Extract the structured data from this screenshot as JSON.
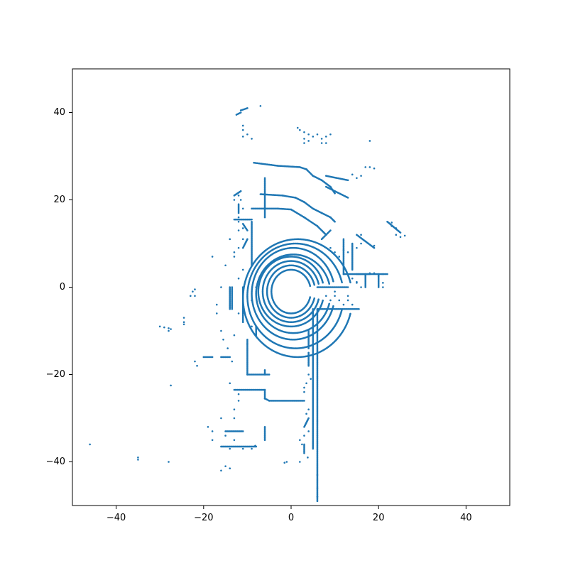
{
  "chart_data": {
    "type": "scatter",
    "title": "",
    "xlabel": "",
    "ylabel": "",
    "xlim": [
      -50,
      50
    ],
    "ylim": [
      -50,
      50
    ],
    "xticks": [
      -40,
      -20,
      0,
      20,
      40
    ],
    "yticks": [
      40,
      20,
      0,
      -20,
      -40
    ],
    "xtick_labels": [
      "−40",
      "−20",
      "0",
      "20",
      "40"
    ],
    "ytick_labels": [
      "40",
      "20",
      "0",
      "−20",
      "−40"
    ],
    "grid": false,
    "color": "#1f77b4",
    "series": [
      {
        "rings": [
          {
            "cx": 0,
            "cy": -1,
            "rx": 4.5,
            "ry": 5
          },
          {
            "cx": 0,
            "cy": -1,
            "rx": 5.5,
            "ry": 6
          },
          {
            "cx": 0,
            "cy": -1,
            "rx": 6.5,
            "ry": 7
          },
          {
            "cx": 0,
            "cy": -1,
            "rx": 7.5,
            "ry": 8
          },
          {
            "cx": 0.5,
            "cy": -1.5,
            "rx": 8.5,
            "ry": 9
          },
          {
            "cx": 0.5,
            "cy": -1.5,
            "rx": 9.5,
            "ry": 10.5
          },
          {
            "cx": 1,
            "cy": -2,
            "rx": 11,
            "ry": 12
          },
          {
            "cx": 1.5,
            "cy": -2.5,
            "rx": 12.5,
            "ry": 13.5
          }
        ],
        "segments": [
          [
            [
              -8.5,
              28.5
            ],
            [
              -3,
              27.8
            ],
            [
              2,
              27.5
            ],
            [
              3.5,
              27
            ],
            [
              5,
              25.5
            ],
            [
              7,
              24.5
            ],
            [
              9,
              23
            ],
            [
              10,
              21.5
            ]
          ],
          [
            [
              -7,
              21.3
            ],
            [
              -2,
              21
            ],
            [
              1,
              20.5
            ],
            [
              3,
              19.5
            ],
            [
              5,
              18
            ],
            [
              7,
              17
            ],
            [
              9,
              16
            ],
            [
              10,
              15
            ]
          ],
          [
            [
              -9,
              18
            ],
            [
              -3,
              18
            ],
            [
              0,
              17.8
            ],
            [
              3,
              16
            ],
            [
              6,
              14
            ],
            [
              8,
              12
            ]
          ],
          [
            [
              -13,
              15.5
            ],
            [
              -9,
              15.5
            ]
          ],
          [
            [
              -9,
              15
            ],
            [
              -9,
              5
            ]
          ],
          [
            [
              -6,
              25
            ],
            [
              -6,
              16
            ]
          ],
          [
            [
              8,
              25.5
            ],
            [
              13,
              24.5
            ]
          ],
          [
            [
              8,
              23
            ],
            [
              13,
              20.5
            ]
          ],
          [
            [
              12,
              3
            ],
            [
              22,
              3
            ]
          ],
          [
            [
              6,
              0
            ],
            [
              13,
              0
            ]
          ],
          [
            [
              6,
              -5
            ],
            [
              15.5,
              -5
            ]
          ],
          [
            [
              12,
              11
            ],
            [
              12,
              3
            ]
          ],
          [
            [
              14,
              10
            ],
            [
              14,
              4
            ]
          ],
          [
            [
              6,
              -5
            ],
            [
              6,
              -49
            ]
          ],
          [
            [
              5,
              -5
            ],
            [
              5,
              -37
            ]
          ],
          [
            [
              -13,
              -23.5
            ],
            [
              -6,
              -23.5
            ]
          ],
          [
            [
              -6,
              -23.5
            ],
            [
              -6,
              -25.5
            ],
            [
              -5,
              -26
            ]
          ],
          [
            [
              -5,
              -26
            ],
            [
              3,
              -26
            ]
          ],
          [
            [
              -10,
              -20
            ],
            [
              -5,
              -20
            ]
          ],
          [
            [
              -10,
              -12
            ],
            [
              -10,
              -20
            ]
          ],
          [
            [
              -6,
              -20
            ],
            [
              -6,
              -19
            ]
          ],
          [
            [
              -8,
              -9
            ],
            [
              -8,
              -11
            ]
          ],
          [
            [
              -13.5,
              -5
            ],
            [
              -13.5,
              0
            ]
          ],
          [
            [
              -14,
              -5
            ],
            [
              -14,
              0
            ]
          ],
          [
            [
              -11,
              -8
            ],
            [
              -11,
              0
            ]
          ],
          [
            [
              -16,
              -36.5
            ],
            [
              -8,
              -36.5
            ]
          ],
          [
            [
              -15,
              -33
            ],
            [
              -11,
              -33
            ]
          ],
          [
            [
              15,
              3
            ],
            [
              18,
              3
            ]
          ],
          [
            [
              17,
              0
            ],
            [
              17,
              3
            ]
          ],
          [
            [
              20,
              0
            ],
            [
              20,
              3
            ]
          ],
          [
            [
              -11.5,
              40.5
            ],
            [
              -10,
              41
            ]
          ],
          [
            [
              -12.5,
              39.5
            ],
            [
              -11.5,
              40
            ]
          ],
          [
            [
              -13,
              21
            ],
            [
              -11.5,
              22
            ]
          ],
          [
            [
              -12,
              17
            ],
            [
              -12,
              19
            ]
          ],
          [
            [
              22,
              15
            ],
            [
              25,
              12.5
            ]
          ],
          [
            [
              15,
              12
            ],
            [
              19,
              9
            ]
          ],
          [
            [
              7,
              11
            ],
            [
              9,
              13
            ]
          ],
          [
            [
              4,
              -10
            ],
            [
              4,
              -14
            ]
          ],
          [
            [
              4,
              -15
            ],
            [
              4,
              -18
            ]
          ],
          [
            [
              -16,
              -16
            ],
            [
              -14,
              -16
            ]
          ],
          [
            [
              -20,
              -16
            ],
            [
              -18,
              -16
            ]
          ],
          [
            [
              -6,
              -35
            ],
            [
              -6,
              -32
            ]
          ],
          [
            [
              3,
              -32
            ],
            [
              4,
              -30
            ]
          ],
          [
            [
              3,
              -38
            ],
            [
              3,
              -36
            ]
          ],
          [
            [
              -11,
              9
            ],
            [
              -10,
              11
            ]
          ],
          [
            [
              -10,
              13
            ],
            [
              -11,
              14.5
            ]
          ]
        ],
        "points": [
          [
            -46,
            -36
          ],
          [
            -35,
            -39
          ],
          [
            -35,
            -39.5
          ],
          [
            -28,
            -40
          ],
          [
            -27.5,
            -22.5
          ],
          [
            -30,
            -9
          ],
          [
            -29,
            -9.2
          ],
          [
            -28,
            -9.4
          ],
          [
            -27.5,
            -9.6
          ],
          [
            -28,
            -10
          ],
          [
            -24.5,
            -7
          ],
          [
            -24.5,
            -8
          ],
          [
            -24.5,
            -8.5
          ],
          [
            -22,
            -17
          ],
          [
            -21.5,
            -18
          ],
          [
            -22,
            -2
          ],
          [
            -22.5,
            -1
          ],
          [
            -22,
            -0.5
          ],
          [
            -23,
            -2
          ],
          [
            -19,
            -32
          ],
          [
            -18,
            -33
          ],
          [
            -18,
            -35
          ],
          [
            -16,
            -42
          ],
          [
            -15,
            -41
          ],
          [
            -14,
            -41.5
          ],
          [
            -14,
            -37
          ],
          [
            -13,
            -30
          ],
          [
            -13,
            -28
          ],
          [
            -12,
            -26
          ],
          [
            -12,
            -24.5
          ],
          [
            -14,
            -22
          ],
          [
            -13.5,
            -17
          ],
          [
            -14.5,
            -14
          ],
          [
            -17,
            -6
          ],
          [
            -17,
            -4
          ],
          [
            -16,
            0
          ],
          [
            -16,
            -10
          ],
          [
            -15.5,
            -12
          ],
          [
            -18,
            7
          ],
          [
            -15,
            5
          ],
          [
            -13,
            7
          ],
          [
            -13,
            8
          ],
          [
            -12,
            9
          ],
          [
            -14,
            11
          ],
          [
            -11,
            11
          ],
          [
            -12,
            13
          ],
          [
            -11,
            13.5
          ],
          [
            -13,
            20
          ],
          [
            -12,
            21
          ],
          [
            -11.5,
            20
          ],
          [
            -11,
            18
          ],
          [
            -12,
            16
          ],
          [
            -12,
            15
          ],
          [
            -11,
            37
          ],
          [
            -11,
            36
          ],
          [
            -10,
            35
          ],
          [
            -9,
            34
          ],
          [
            -7,
            41.5
          ],
          [
            -11,
            34.5
          ],
          [
            1.5,
            36.5
          ],
          [
            2,
            36
          ],
          [
            3,
            35.5
          ],
          [
            4,
            35
          ],
          [
            5,
            34.5
          ],
          [
            6,
            35
          ],
          [
            7,
            34
          ],
          [
            8,
            33
          ],
          [
            3,
            34
          ],
          [
            3,
            33
          ],
          [
            4,
            33.5
          ],
          [
            7,
            33
          ],
          [
            8,
            34.5
          ],
          [
            9,
            35
          ],
          [
            18,
            33.5
          ],
          [
            17,
            27.5
          ],
          [
            18,
            27.5
          ],
          [
            19,
            27.2
          ],
          [
            15,
            25
          ],
          [
            16,
            25.5
          ],
          [
            14,
            25.8
          ],
          [
            24,
            12
          ],
          [
            25,
            11.5
          ],
          [
            26,
            11.8
          ],
          [
            23,
            14
          ],
          [
            24,
            13.5
          ],
          [
            23,
            14.8
          ],
          [
            19,
            9.5
          ],
          [
            16,
            12
          ],
          [
            16,
            10
          ],
          [
            15,
            9
          ],
          [
            18,
            3.2
          ],
          [
            19,
            3.2
          ],
          [
            20,
            2.5
          ],
          [
            21,
            3
          ],
          [
            21,
            1
          ],
          [
            21,
            0
          ],
          [
            16,
            0
          ],
          [
            15,
            1
          ],
          [
            14,
            2
          ],
          [
            13,
            -2
          ],
          [
            13,
            -3
          ],
          [
            10,
            -1
          ],
          [
            10,
            -2
          ],
          [
            9,
            -3
          ],
          [
            8,
            -2
          ],
          [
            11,
            -3
          ],
          [
            12,
            -4
          ],
          [
            14,
            -4
          ],
          [
            15,
            1.2
          ],
          [
            11,
            7
          ],
          [
            10,
            8
          ],
          [
            9,
            9
          ],
          [
            13,
            8
          ],
          [
            12,
            8.5
          ],
          [
            3,
            -34
          ],
          [
            2,
            -35
          ],
          [
            2.5,
            -36
          ],
          [
            4,
            -33
          ],
          [
            3.8,
            -39
          ],
          [
            2,
            -40
          ],
          [
            -1,
            -40
          ],
          [
            -1.5,
            -40.2
          ],
          [
            6,
            -43
          ],
          [
            6,
            -46
          ],
          [
            6,
            -48
          ],
          [
            4,
            -20
          ],
          [
            4.5,
            -21
          ],
          [
            3.5,
            -22
          ],
          [
            3,
            -23
          ],
          [
            3,
            -24
          ],
          [
            4,
            -28
          ],
          [
            3.5,
            -29
          ],
          [
            -8.2,
            -36.3
          ],
          [
            -9,
            -37
          ],
          [
            -11,
            -37
          ],
          [
            -13,
            -35
          ],
          [
            -15,
            -34
          ],
          [
            -16,
            -30
          ],
          [
            -9,
            -9
          ],
          [
            -10,
            -13
          ],
          [
            -13,
            -11
          ],
          [
            -12,
            -6
          ],
          [
            -9,
            -3
          ],
          [
            -8,
            0
          ],
          [
            -11,
            4
          ],
          [
            -12,
            2
          ]
        ]
      }
    ]
  }
}
